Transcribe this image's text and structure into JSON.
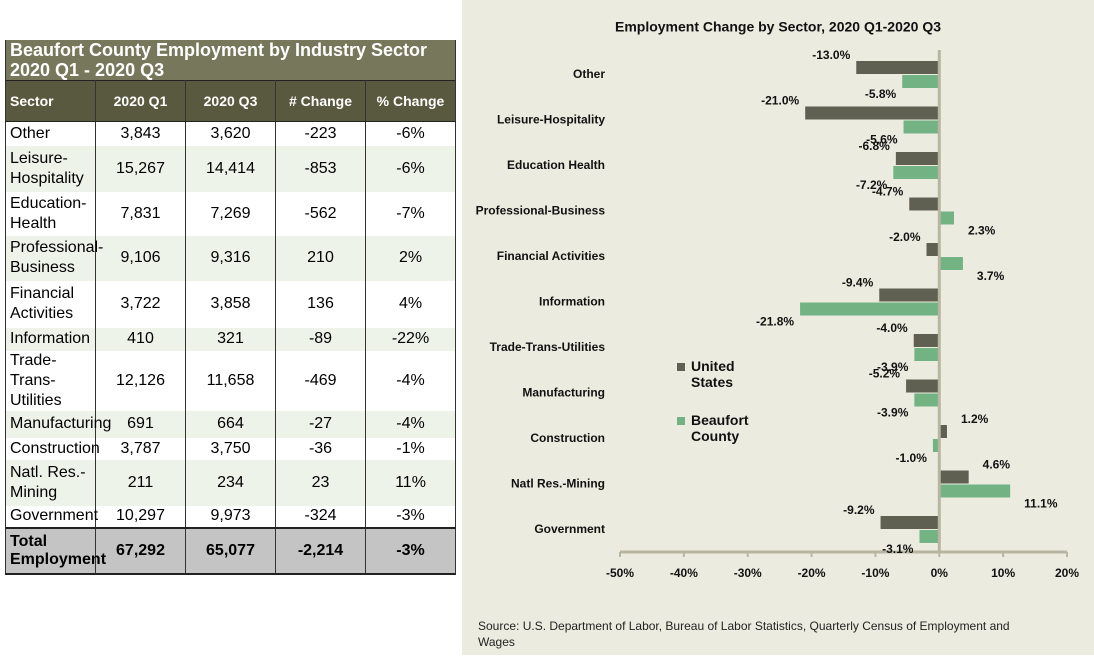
{
  "table": {
    "title_lines": [
      "Beaufort County Employment by Industry Sector",
      "2020 Q1 - 2020 Q3"
    ],
    "header": [
      "Sector",
      "2020 Q1",
      "2020 Q3",
      "# Change",
      "% Change"
    ],
    "rows": [
      [
        "Other",
        "3,843",
        "3,620",
        "-223",
        "-6%"
      ],
      [
        "Leisure-Hospitality",
        "15,267",
        "14,414",
        "-853",
        "-6%"
      ],
      [
        "Education-Health",
        "7,831",
        "7,269",
        "-562",
        "-7%"
      ],
      [
        "Professional-Business",
        "9,106",
        "9,316",
        "210",
        "2%"
      ],
      [
        "Financial Activities",
        "3,722",
        "3,858",
        "136",
        "4%"
      ],
      [
        "Information",
        "410",
        "321",
        "-89",
        "-22%"
      ],
      [
        "Trade-Trans-Utilities",
        "12,126",
        "11,658",
        "-469",
        "-4%"
      ],
      [
        "Manufacturing",
        "691",
        "664",
        "-27",
        "-4%"
      ],
      [
        "Construction",
        "3,787",
        "3,750",
        "-36",
        "-1%"
      ],
      [
        "Natl. Res.-Mining",
        "211",
        "234",
        "23",
        "11%"
      ],
      [
        "Government",
        "10,297",
        "9,973",
        "-324",
        "-3%"
      ]
    ],
    "total": [
      "Total Employment",
      "67,292",
      "65,077",
      "-2,214",
      "-3%"
    ]
  },
  "chart_data": {
    "type": "hbar",
    "title": "Employment Change by Sector, 2020 Q1-2020 Q3",
    "categories": [
      "Other",
      "Leisure-Hospitality",
      "Education Health",
      "Professional-Business",
      "Financial Activities",
      "Information",
      "Trade-Trans-Utilities",
      "Manufacturing",
      "Construction",
      "Natl Res.-Mining",
      "Government"
    ],
    "series": [
      {
        "name": "United States",
        "color": "#5f5f52",
        "values": [
          -13.0,
          -21.0,
          -6.8,
          -4.7,
          -2.0,
          -9.4,
          -4.0,
          -5.2,
          1.2,
          4.6,
          -9.2
        ],
        "value_labels": [
          "-13.0%",
          "-21.0%",
          "-6.8%",
          "-4.7%",
          "-2.0%",
          "-9.4%",
          "-4.0%",
          "-5.2%",
          "1.2%",
          "4.6%",
          "-9.2%"
        ]
      },
      {
        "name": "Beaufort County",
        "color": "#72b283",
        "values": [
          -5.8,
          -5.6,
          -7.2,
          2.3,
          3.7,
          -21.8,
          -3.9,
          -3.9,
          -1.0,
          11.1,
          -3.1
        ],
        "value_labels": [
          "-5.8%",
          "-5.6%",
          "-7.2%",
          "2.3%",
          "3.7%",
          "-21.8%",
          "-3.9%",
          "-3.9%",
          "-1.0%",
          "11.1%",
          "-3.1%"
        ]
      }
    ],
    "xlim": [
      -50,
      20
    ],
    "xticks": [
      {
        "value": -50,
        "label": "-50%"
      },
      {
        "value": -40,
        "label": "-40%"
      },
      {
        "value": -30,
        "label": "-30%"
      },
      {
        "value": -20,
        "label": "-20%"
      },
      {
        "value": -10,
        "label": "-10%"
      },
      {
        "value": 0,
        "label": "0%"
      },
      {
        "value": 10,
        "label": "10%"
      },
      {
        "value": 20,
        "label": "20%"
      }
    ],
    "source": "Source: U.S. Department of Labor, Bureau of Labor Statistics, Quarterly Census of Employment and Wages"
  }
}
